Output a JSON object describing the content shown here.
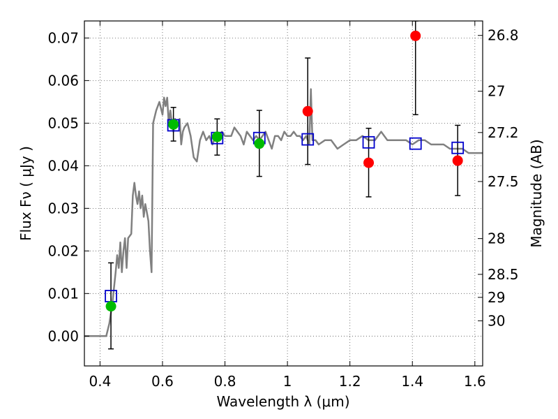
{
  "chart_data": {
    "type": "scatter",
    "xlabel": "Wavelength  λ (μm)",
    "ylabel": "Flux  Fν  ( μJy )",
    "y2label": "Magnitude (AB)",
    "xlim": [
      0.35,
      1.625
    ],
    "ylim": [
      -0.007,
      0.074
    ],
    "grid": true,
    "x_ticks": [
      0.4,
      0.6,
      0.8,
      1.0,
      1.2,
      1.4,
      1.6
    ],
    "x_tick_labels": [
      "0.4",
      "0.6",
      "0.8",
      "1",
      "1.2",
      "1.4",
      "1.6"
    ],
    "y_ticks": [
      0.0,
      0.01,
      0.02,
      0.03,
      0.04,
      0.05,
      0.06,
      0.07
    ],
    "y_tick_labels": [
      "0.00",
      "0.01",
      "0.02",
      "0.03",
      "0.04",
      "0.05",
      "0.06",
      "0.07"
    ],
    "y2_ticks": [
      {
        "label": "26.8",
        "flux": 0.0706
      },
      {
        "label": "27",
        "flux": 0.0575
      },
      {
        "label": "27.2",
        "flux": 0.0478
      },
      {
        "label": "27.5",
        "flux": 0.0363
      },
      {
        "label": "28",
        "flux": 0.0229
      },
      {
        "label": "28.5",
        "flux": 0.0145
      },
      {
        "label": "29",
        "flux": 0.0091
      },
      {
        "label": "30",
        "flux": 0.0036
      }
    ],
    "series": [
      {
        "marker": "line",
        "color": "#808080",
        "points": [
          [
            0.35,
            0.0
          ],
          [
            0.42,
            0.0
          ],
          [
            0.43,
            0.003
          ],
          [
            0.44,
            0.008
          ],
          [
            0.45,
            0.015
          ],
          [
            0.455,
            0.019
          ],
          [
            0.46,
            0.016
          ],
          [
            0.465,
            0.022
          ],
          [
            0.47,
            0.015
          ],
          [
            0.475,
            0.02
          ],
          [
            0.48,
            0.023
          ],
          [
            0.485,
            0.016
          ],
          [
            0.49,
            0.023
          ],
          [
            0.5,
            0.024
          ],
          [
            0.505,
            0.033
          ],
          [
            0.51,
            0.036
          ],
          [
            0.515,
            0.033
          ],
          [
            0.52,
            0.031
          ],
          [
            0.525,
            0.034
          ],
          [
            0.53,
            0.03
          ],
          [
            0.535,
            0.033
          ],
          [
            0.54,
            0.028
          ],
          [
            0.545,
            0.031
          ],
          [
            0.55,
            0.029
          ],
          [
            0.555,
            0.027
          ],
          [
            0.56,
            0.02
          ],
          [
            0.565,
            0.015
          ],
          [
            0.57,
            0.05
          ],
          [
            0.58,
            0.053
          ],
          [
            0.59,
            0.055
          ],
          [
            0.6,
            0.052
          ],
          [
            0.605,
            0.056
          ],
          [
            0.61,
            0.054
          ],
          [
            0.615,
            0.056
          ],
          [
            0.62,
            0.05
          ],
          [
            0.625,
            0.053
          ],
          [
            0.63,
            0.05
          ],
          [
            0.635,
            0.048
          ],
          [
            0.64,
            0.051
          ],
          [
            0.65,
            0.05
          ],
          [
            0.655,
            0.051
          ],
          [
            0.66,
            0.045
          ],
          [
            0.665,
            0.048
          ],
          [
            0.67,
            0.049
          ],
          [
            0.68,
            0.05
          ],
          [
            0.69,
            0.047
          ],
          [
            0.7,
            0.042
          ],
          [
            0.71,
            0.041
          ],
          [
            0.72,
            0.046
          ],
          [
            0.73,
            0.048
          ],
          [
            0.74,
            0.046
          ],
          [
            0.75,
            0.047
          ],
          [
            0.76,
            0.045
          ],
          [
            0.77,
            0.047
          ],
          [
            0.78,
            0.046
          ],
          [
            0.79,
            0.048
          ],
          [
            0.8,
            0.047
          ],
          [
            0.81,
            0.047
          ],
          [
            0.82,
            0.047
          ],
          [
            0.83,
            0.049
          ],
          [
            0.84,
            0.048
          ],
          [
            0.85,
            0.047
          ],
          [
            0.86,
            0.045
          ],
          [
            0.87,
            0.048
          ],
          [
            0.88,
            0.047
          ],
          [
            0.89,
            0.046
          ],
          [
            0.9,
            0.047
          ],
          [
            0.91,
            0.046
          ],
          [
            0.92,
            0.047
          ],
          [
            0.93,
            0.048
          ],
          [
            0.94,
            0.046
          ],
          [
            0.95,
            0.044
          ],
          [
            0.96,
            0.047
          ],
          [
            0.97,
            0.047
          ],
          [
            0.98,
            0.046
          ],
          [
            0.99,
            0.048
          ],
          [
            1.0,
            0.047
          ],
          [
            1.01,
            0.047
          ],
          [
            1.02,
            0.048
          ],
          [
            1.03,
            0.047
          ],
          [
            1.04,
            0.047
          ],
          [
            1.05,
            0.046
          ],
          [
            1.06,
            0.047
          ],
          [
            1.07,
            0.045
          ],
          [
            1.075,
            0.058
          ],
          [
            1.08,
            0.046
          ],
          [
            1.09,
            0.046
          ],
          [
            1.1,
            0.045
          ],
          [
            1.12,
            0.046
          ],
          [
            1.14,
            0.046
          ],
          [
            1.16,
            0.044
          ],
          [
            1.18,
            0.045
          ],
          [
            1.2,
            0.046
          ],
          [
            1.22,
            0.046
          ],
          [
            1.24,
            0.047
          ],
          [
            1.26,
            0.046
          ],
          [
            1.28,
            0.046
          ],
          [
            1.3,
            0.048
          ],
          [
            1.32,
            0.046
          ],
          [
            1.34,
            0.046
          ],
          [
            1.36,
            0.046
          ],
          [
            1.38,
            0.046
          ],
          [
            1.4,
            0.045
          ],
          [
            1.42,
            0.046
          ],
          [
            1.44,
            0.046
          ],
          [
            1.46,
            0.045
          ],
          [
            1.48,
            0.045
          ],
          [
            1.5,
            0.045
          ],
          [
            1.52,
            0.044
          ],
          [
            1.54,
            0.044
          ],
          [
            1.56,
            0.044
          ],
          [
            1.58,
            0.043
          ],
          [
            1.6,
            0.043
          ],
          [
            1.625,
            0.043
          ]
        ]
      },
      {
        "marker": "square",
        "color": "#0000cc",
        "points": [
          [
            0.435,
            0.0094
          ],
          [
            0.635,
            0.0495
          ],
          [
            0.775,
            0.0465
          ],
          [
            0.91,
            0.0465
          ],
          [
            1.065,
            0.0462
          ],
          [
            1.26,
            0.0455
          ],
          [
            1.41,
            0.0452
          ],
          [
            1.545,
            0.0442
          ]
        ]
      },
      {
        "marker": "circle",
        "color": "#00bb00",
        "points": [
          [
            0.435,
            0.007
          ],
          [
            0.635,
            0.0497
          ],
          [
            0.775,
            0.0468
          ],
          [
            0.91,
            0.0452
          ]
        ]
      },
      {
        "marker": "circle",
        "color": "#ff0000",
        "points": [
          [
            1.065,
            0.0528
          ],
          [
            1.26,
            0.0407
          ],
          [
            1.41,
            0.0705
          ],
          [
            1.545,
            0.0412
          ]
        ]
      }
    ],
    "error_bars": [
      {
        "x": 0.435,
        "low": -0.003,
        "high": 0.0172
      },
      {
        "x": 0.635,
        "low": 0.0458,
        "high": 0.0537
      },
      {
        "x": 0.775,
        "low": 0.0425,
        "high": 0.051
      },
      {
        "x": 0.91,
        "low": 0.0375,
        "high": 0.053
      },
      {
        "x": 1.065,
        "low": 0.0403,
        "high": 0.0653
      },
      {
        "x": 1.26,
        "low": 0.0327,
        "high": 0.0488
      },
      {
        "x": 1.41,
        "low": 0.052,
        "high": 0.074
      },
      {
        "x": 1.545,
        "low": 0.033,
        "high": 0.0495
      }
    ]
  }
}
